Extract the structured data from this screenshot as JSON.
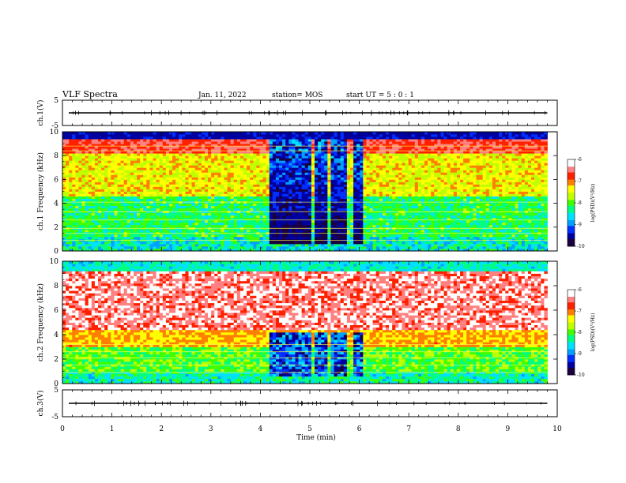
{
  "header": {
    "title": "VLF Spectra",
    "date": "Jan. 11, 2022",
    "station": "station= MOS",
    "start_ut": "start UT =  5 : 0 : 1"
  },
  "colors": {
    "background": "#ffffff",
    "colormap": [
      "#1a0040",
      "#0000a0",
      "#0030ff",
      "#00a0ff",
      "#00e0ff",
      "#00ff80",
      "#40ff00",
      "#c0ff00",
      "#ffff00",
      "#ff8000",
      "#ff2000",
      "#ff8080",
      "#ffffff"
    ]
  },
  "chart_data": [
    {
      "type": "line",
      "panel": "ch1-waveform",
      "ylabel": "ch.1(V)",
      "ylim": [
        -5,
        5
      ],
      "yticks": [
        "5",
        "-5"
      ],
      "xlim": [
        0,
        10
      ],
      "baseline_v": 0
    },
    {
      "type": "heatmap",
      "panel": "ch1-spectrogram",
      "ylabel": "ch.1 Frequency (kHz)",
      "xlabel": "Time (min)",
      "xlim": [
        0,
        10
      ],
      "ylim": [
        0,
        10
      ],
      "yticks": [
        "0",
        "2",
        "4",
        "6",
        "8",
        "10"
      ],
      "data_end_min": 9.8,
      "quiet_intervals_min": [
        [
          4.2,
          5.0
        ],
        [
          5.1,
          5.35
        ],
        [
          5.45,
          5.75
        ],
        [
          5.9,
          6.1
        ]
      ],
      "colorbar": {
        "label": "log(PSD)(V²/Hz)",
        "range": [
          -10,
          -6
        ],
        "ticks": [
          "-6",
          "-7",
          "-8",
          "-9",
          "-10"
        ]
      }
    },
    {
      "type": "heatmap",
      "panel": "ch2-spectrogram",
      "ylabel": "ch.2 Frequency (kHz)",
      "xlabel": "Time (min)",
      "xlim": [
        0,
        10
      ],
      "ylim": [
        0,
        10
      ],
      "yticks": [
        "0",
        "2",
        "4",
        "6",
        "8",
        "10"
      ],
      "data_end_min": 9.8,
      "quiet_intervals_min": [
        [
          4.2,
          5.0
        ],
        [
          5.1,
          5.35
        ],
        [
          5.45,
          5.75
        ],
        [
          5.9,
          6.1
        ]
      ],
      "colorbar": {
        "label": "log(PSD)(V²/Hz)",
        "range": [
          -10,
          -6
        ],
        "ticks": [
          "-6",
          "-7",
          "-8",
          "-9",
          "-10"
        ]
      }
    },
    {
      "type": "line",
      "panel": "ch3-waveform",
      "ylabel": "ch.3(V)",
      "ylim": [
        -5,
        5
      ],
      "yticks": [
        "5",
        "-5"
      ],
      "xlim": [
        0,
        10
      ],
      "baseline_v": 0
    }
  ],
  "xaxis": {
    "label": "Time (min)",
    "ticks": [
      "0",
      "1",
      "2",
      "3",
      "4",
      "5",
      "6",
      "7",
      "8",
      "9",
      "10"
    ]
  }
}
